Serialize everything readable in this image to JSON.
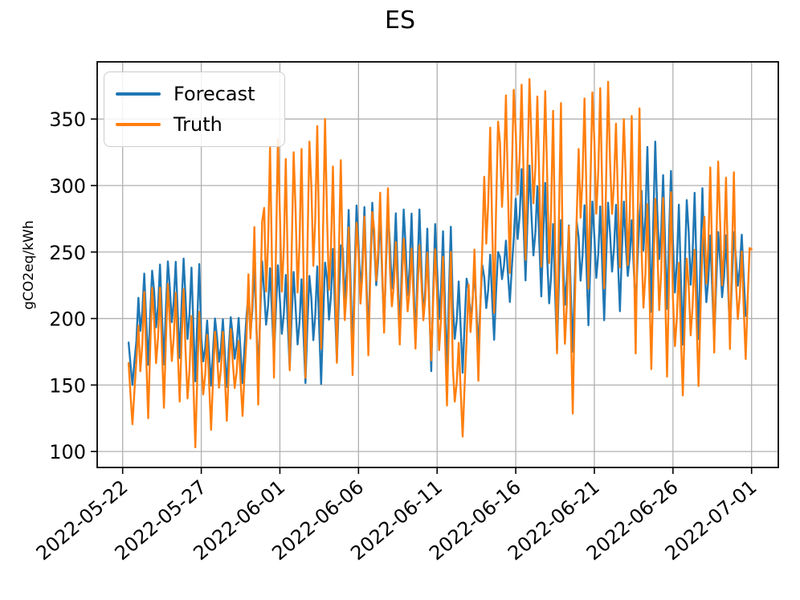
{
  "chart_data": {
    "type": "line",
    "title": "ES",
    "ylabel": "gCO2eq/kWh",
    "grid": true,
    "grid_color": "#b0b0b0",
    "axes_color": "#000000",
    "ylim": [
      88,
      393
    ],
    "y_ticks": [
      100,
      150,
      200,
      250,
      300,
      350
    ],
    "xlim_days": [
      -1.62,
      41.7
    ],
    "x_ticks": [
      {
        "day": 0,
        "label": "2022-05-22"
      },
      {
        "day": 5,
        "label": "2022-05-27"
      },
      {
        "day": 10,
        "label": "2022-06-01"
      },
      {
        "day": 15,
        "label": "2022-06-06"
      },
      {
        "day": 20,
        "label": "2022-06-11"
      },
      {
        "day": 25,
        "label": "2022-06-16"
      },
      {
        "day": 30,
        "label": "2022-06-21"
      },
      {
        "day": 35,
        "label": "2022-06-26"
      },
      {
        "day": 40,
        "label": "2022-07-01"
      }
    ],
    "legend_position": "upper-left",
    "series_meta": [
      {
        "name": "Forecast",
        "color": "#1f77b4"
      },
      {
        "name": "Truth",
        "color": "#ff7f0e"
      }
    ],
    "intraday_hours": [
      0,
      3,
      6,
      9,
      12,
      15,
      18,
      21
    ],
    "intraday_weights": [
      0.72,
      0.38,
      0.58,
      0.97,
      0.48,
      0.03,
      0.55,
      1.0
    ],
    "data_start_day": 0.33,
    "forecast_end_day": 39.65,
    "truth_end_point": {
      "day": 40,
      "value": 252
    },
    "daily_envelopes": [
      {
        "date": "05-22",
        "forecast_min_max": [
          149,
          183
        ],
        "truth_min_max": [
          119,
          168
        ]
      },
      {
        "date": "05-23",
        "forecast_min_max": [
          163,
          236
        ],
        "truth_min_max": [
          122,
          223
        ]
      },
      {
        "date": "05-24",
        "forecast_min_max": [
          163,
          243
        ],
        "truth_min_max": [
          130,
          226
        ]
      },
      {
        "date": "05-25",
        "forecast_min_max": [
          168,
          245
        ],
        "truth_min_max": [
          135,
          222
        ]
      },
      {
        "date": "05-26",
        "forecast_min_max": [
          150,
          241
        ],
        "truth_min_max": [
          100,
          205
        ]
      },
      {
        "date": "05-27",
        "forecast_min_max": [
          148,
          200
        ],
        "truth_min_max": [
          114,
          190
        ]
      },
      {
        "date": "05-28",
        "forecast_min_max": [
          147,
          201
        ],
        "truth_min_max": [
          121,
          192
        ]
      },
      {
        "date": "05-29",
        "forecast_min_max": [
          150,
          202
        ],
        "truth_min_max": [
          125,
          185
        ]
      },
      {
        "date": "05-30",
        "forecast_min_max": [
          155,
          243
        ],
        "truth_min_max": [
          131,
          273
        ]
      },
      {
        "date": "05-31",
        "forecast_min_max": [
          168,
          240
        ],
        "truth_min_max": [
          150,
          335
        ]
      },
      {
        "date": "06-01",
        "forecast_min_max": [
          160,
          235
        ],
        "truth_min_max": [
          156,
          325
        ]
      },
      {
        "date": "06-02",
        "forecast_min_max": [
          149,
          232
        ],
        "truth_min_max": [
          150,
          333
        ]
      },
      {
        "date": "06-03",
        "forecast_min_max": [
          148,
          242
        ],
        "truth_min_max": [
          172,
          350
        ]
      },
      {
        "date": "06-04",
        "forecast_min_max": [
          165,
          255
        ],
        "truth_min_max": [
          162,
          319
        ]
      },
      {
        "date": "06-05",
        "forecast_min_max": [
          170,
          285
        ],
        "truth_min_max": [
          154,
          272
        ]
      },
      {
        "date": "06-06",
        "forecast_min_max": [
          180,
          287
        ],
        "truth_min_max": [
          169,
          280
        ]
      },
      {
        "date": "06-07",
        "forecast_min_max": [
          190,
          282
        ],
        "truth_min_max": [
          186,
          298
        ]
      },
      {
        "date": "06-08",
        "forecast_min_max": [
          186,
          282
        ],
        "truth_min_max": [
          178,
          260
        ]
      },
      {
        "date": "06-09",
        "forecast_min_max": [
          178,
          282
        ],
        "truth_min_max": [
          175,
          255
        ]
      },
      {
        "date": "06-10",
        "forecast_min_max": [
          157,
          271
        ],
        "truth_min_max": [
          166,
          252
        ]
      },
      {
        "date": "06-11",
        "forecast_min_max": [
          157,
          269
        ],
        "truth_min_max": [
          131,
          250
        ]
      },
      {
        "date": "06-12",
        "forecast_min_max": [
          157,
          230
        ],
        "truth_min_max": [
          109,
          184
        ]
      },
      {
        "date": "06-13",
        "forecast_min_max": [
          175,
          240
        ],
        "truth_min_max": [
          150,
          255
        ]
      },
      {
        "date": "06-14",
        "forecast_min_max": [
          182,
          250
        ],
        "truth_min_max": [
          200,
          348
        ]
      },
      {
        "date": "06-15",
        "forecast_min_max": [
          211,
          260
        ],
        "truth_min_max": [
          230,
          372
        ]
      },
      {
        "date": "06-16",
        "forecast_min_max": [
          226,
          315
        ],
        "truth_min_max": [
          240,
          380
        ]
      },
      {
        "date": "06-17",
        "forecast_min_max": [
          214,
          302
        ],
        "truth_min_max": [
          235,
          371
        ]
      },
      {
        "date": "06-18",
        "forecast_min_max": [
          173,
          274
        ],
        "truth_min_max": [
          168,
          362
        ]
      },
      {
        "date": "06-19",
        "forecast_min_max": [
          172,
          273
        ],
        "truth_min_max": [
          124,
          274
        ]
      },
      {
        "date": "06-20",
        "forecast_min_max": [
          192,
          288
        ],
        "truth_min_max": [
          218,
          370
        ]
      },
      {
        "date": "06-21",
        "forecast_min_max": [
          196,
          287
        ],
        "truth_min_max": [
          218,
          378
        ]
      },
      {
        "date": "06-22",
        "forecast_min_max": [
          203,
          288
        ],
        "truth_min_max": [
          235,
          350
        ]
      },
      {
        "date": "06-23",
        "forecast_min_max": [
          205,
          276
        ],
        "truth_min_max": [
          168,
          358
        ]
      },
      {
        "date": "06-24",
        "forecast_min_max": [
          201,
          333
        ],
        "truth_min_max": [
          158,
          290
        ]
      },
      {
        "date": "06-25",
        "forecast_min_max": [
          204,
          311
        ],
        "truth_min_max": [
          152,
          295
        ]
      },
      {
        "date": "06-26",
        "forecast_min_max": [
          177,
          289
        ],
        "truth_min_max": [
          139,
          245
        ]
      },
      {
        "date": "06-27",
        "forecast_min_max": [
          181,
          298
        ],
        "truth_min_max": [
          146,
          255
        ]
      },
      {
        "date": "06-28",
        "forecast_min_max": [
          180,
          265
        ],
        "truth_min_max": [
          170,
          318
        ]
      },
      {
        "date": "06-29",
        "forecast_min_max": [
          186,
          265
        ],
        "truth_min_max": [
          173,
          310
        ]
      },
      {
        "date": "06-30",
        "forecast_min_max": [
          200,
          265
        ],
        "truth_min_max": [
          167,
          253
        ]
      }
    ]
  }
}
